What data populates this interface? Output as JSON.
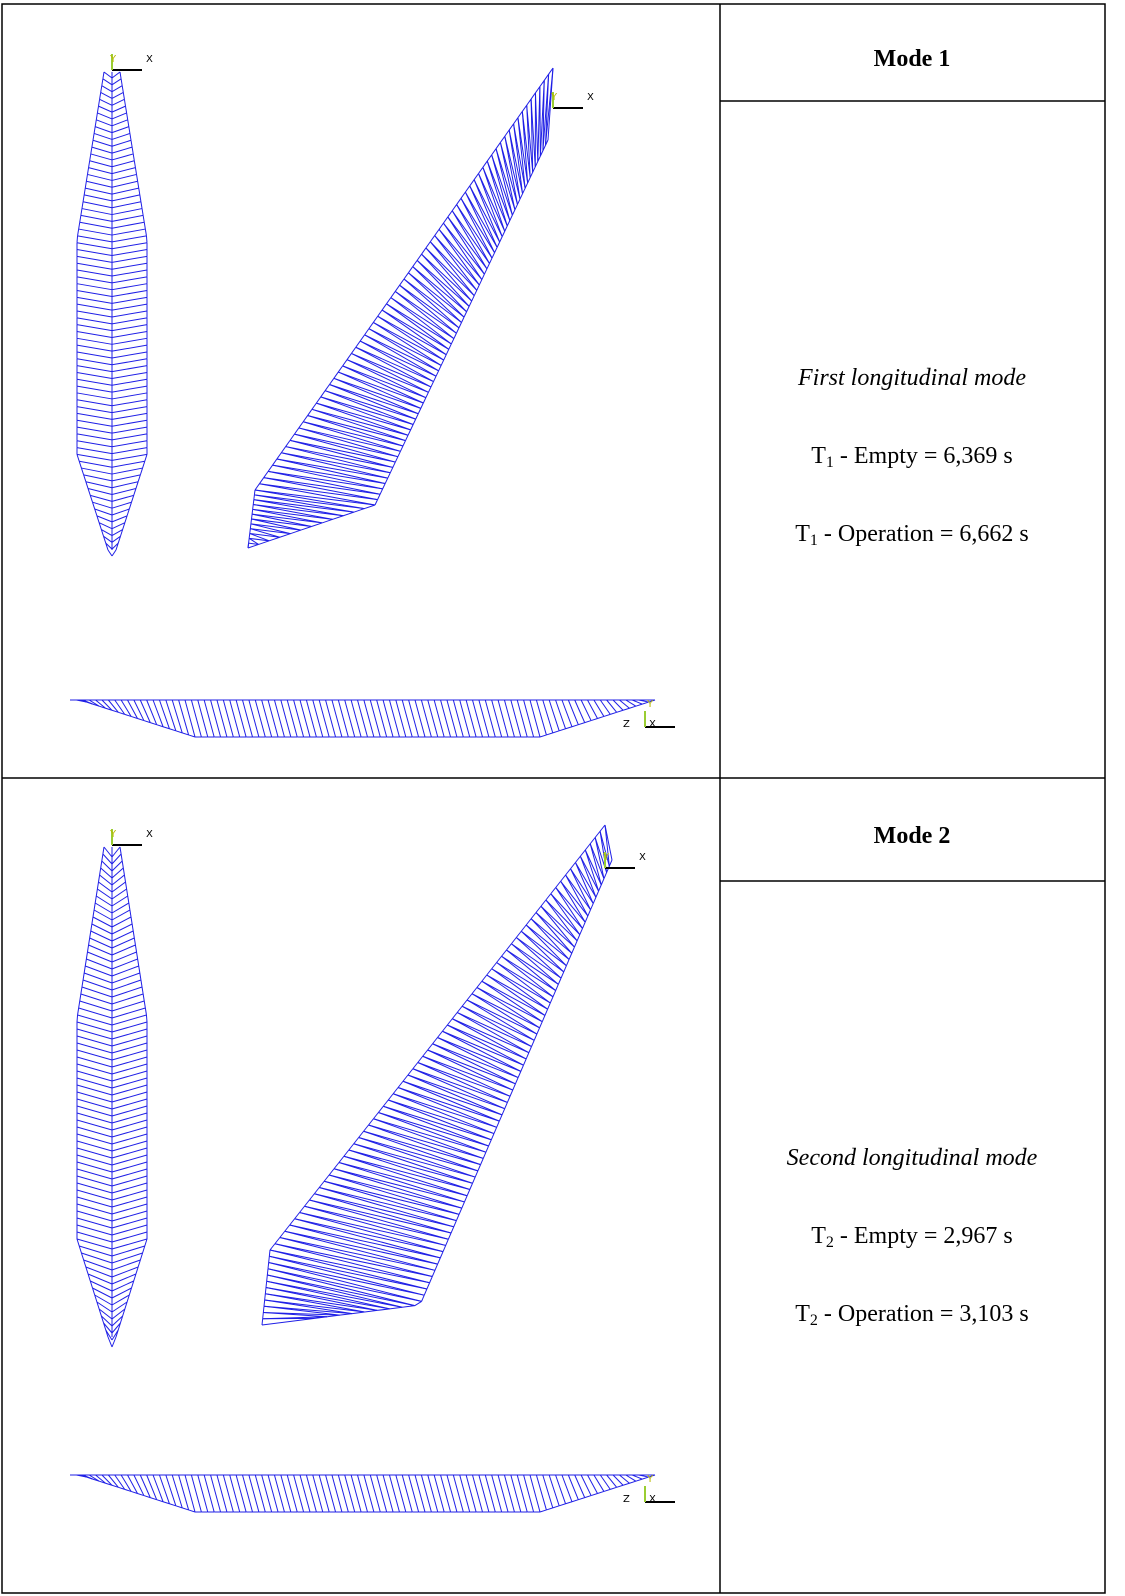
{
  "rows": [
    {
      "header": "Mode 1",
      "triad_labels": [
        [
          "Y",
          "X"
        ],
        [
          "Y",
          "X"
        ],
        [
          "Y",
          "Z",
          "X"
        ]
      ],
      "description": "First longitudinal mode",
      "periods": [
        {
          "symbol": "T",
          "subscript": "1",
          "text": "- Empty = 6,369 s"
        },
        {
          "symbol": "T",
          "subscript": "1",
          "text": "- Operation = 6,662 s"
        }
      ]
    },
    {
      "header": "Mode 2",
      "triad_labels": [
        [
          "Y",
          "X"
        ],
        [
          "Y",
          "X"
        ],
        [
          "Y",
          "Z",
          "X"
        ]
      ],
      "description": "Second longitudinal mode",
      "periods": [
        {
          "symbol": "T",
          "subscript": "2",
          "text": "- Empty = 2,967 s"
        },
        {
          "symbol": "T",
          "subscript": "2",
          "text": "- Operation = 3,103 s"
        }
      ]
    }
  ]
}
